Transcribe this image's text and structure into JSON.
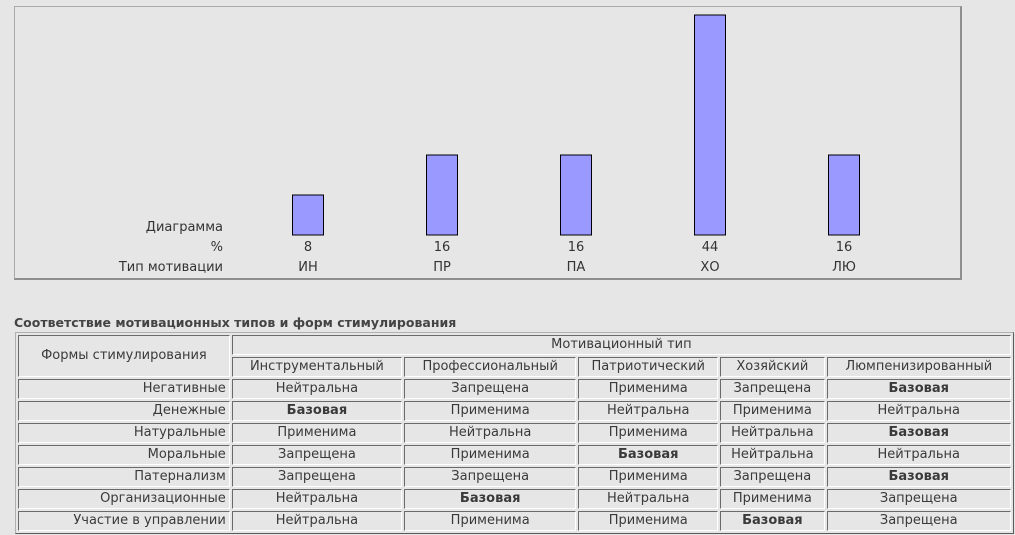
{
  "chart_data": {
    "type": "bar",
    "categories": [
      "ИН",
      "ПР",
      "ПА",
      "ХО",
      "ЛЮ"
    ],
    "values": [
      8,
      16,
      16,
      44,
      16
    ],
    "row_labels": [
      "Диаграмма",
      "%",
      "Тип мотивации"
    ],
    "bar_color": "#9999ff",
    "bar_border_color": "#000000"
  },
  "table": {
    "title": "Соответствие мотивационных типов и форм стимулирования",
    "corner_header": "Формы стимулирования",
    "group_header": "Мотивационный тип",
    "columns": [
      "Инструментальный",
      "Профессиональный",
      "Патриотический",
      "Хозяйский",
      "Люмпенизированный"
    ],
    "rows": [
      {
        "label": "Негативные",
        "cells": [
          "Нейтральна",
          "Запрещена",
          "Применима",
          "Запрещена",
          "Базовая"
        ]
      },
      {
        "label": "Денежные",
        "cells": [
          "Базовая",
          "Применима",
          "Нейтральна",
          "Применима",
          "Нейтральна"
        ]
      },
      {
        "label": "Натуральные",
        "cells": [
          "Применима",
          "Нейтральна",
          "Применима",
          "Нейтральна",
          "Базовая"
        ]
      },
      {
        "label": "Моральные",
        "cells": [
          "Запрещена",
          "Применима",
          "Базовая",
          "Нейтральна",
          "Нейтральна"
        ]
      },
      {
        "label": "Патернализм",
        "cells": [
          "Запрещена",
          "Запрещена",
          "Применима",
          "Запрещена",
          "Базовая"
        ]
      },
      {
        "label": "Организационные",
        "cells": [
          "Нейтральна",
          "Базовая",
          "Нейтральна",
          "Применима",
          "Запрещена"
        ]
      },
      {
        "label": "Участие в управлении",
        "cells": [
          "Нейтральна",
          "Применима",
          "Применима",
          "Базовая",
          "Запрещена"
        ]
      }
    ],
    "emphasis_value": "Базовая"
  }
}
